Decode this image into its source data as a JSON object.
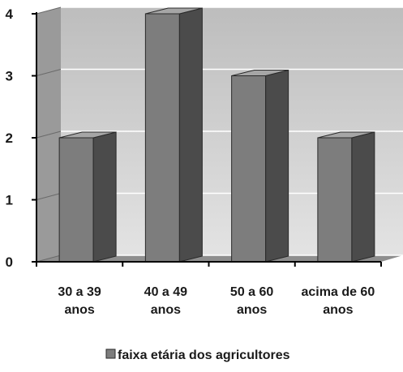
{
  "chart_data": {
    "type": "bar",
    "categories": [
      [
        "30 a 39",
        "anos"
      ],
      [
        "40 a 49",
        "anos"
      ],
      [
        "50 a 60",
        "anos"
      ],
      [
        "acima de 60",
        "anos"
      ]
    ],
    "series": [
      {
        "name": "faixa etária dos agricultores",
        "values": [
          2,
          4,
          3,
          2
        ]
      }
    ],
    "ylim": [
      0,
      4
    ],
    "yticks": [
      "0",
      "1",
      "2",
      "3",
      "4"
    ],
    "grid": true,
    "legend_position": "bottom",
    "is_3d": true,
    "colors": {
      "bar_front": "#7d7d7d",
      "bar_side": "#4b4b4b",
      "bar_top": "#a6a6a6",
      "back_wall_top": "#bdbdbd",
      "back_wall_bottom": "#e3e3e3",
      "side_wall": "#9a9a9a",
      "floor": "#8e8e8e",
      "axis": "#000000",
      "gridline": "#ffffff"
    }
  }
}
